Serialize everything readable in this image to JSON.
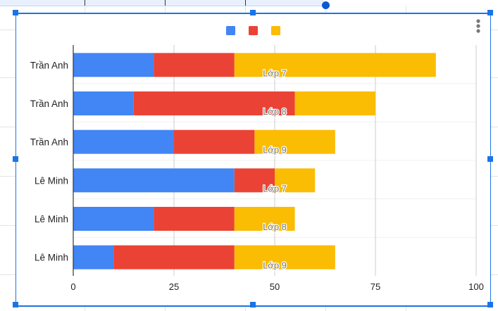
{
  "chart_data": {
    "type": "bar",
    "orientation": "horizontal",
    "stacked": true,
    "categories": [
      "Trần Anh",
      "Trần Anh",
      "Trần Anh",
      "Lê Minh",
      "Lê Minh",
      "Lê Minh"
    ],
    "annotations": [
      "Lớp 7",
      "Lớp 8",
      "Lớp 9",
      "Lớp 7",
      "Lớp 8",
      "Lớp 9"
    ],
    "series": [
      {
        "color": "#4285f4",
        "values": [
          20,
          15,
          25,
          40,
          20,
          10
        ]
      },
      {
        "color": "#ea4335",
        "values": [
          20,
          40,
          20,
          10,
          20,
          30
        ]
      },
      {
        "color": "#fbbc04",
        "values": [
          50,
          20,
          20,
          10,
          15,
          25
        ]
      }
    ],
    "xlim": [
      0,
      100
    ],
    "xticks": [
      "0",
      "25",
      "50",
      "75",
      "100"
    ],
    "grid": true,
    "legend": "top",
    "title": "",
    "xlabel": "",
    "ylabel": ""
  },
  "menu_icon": "more-vert-icon"
}
